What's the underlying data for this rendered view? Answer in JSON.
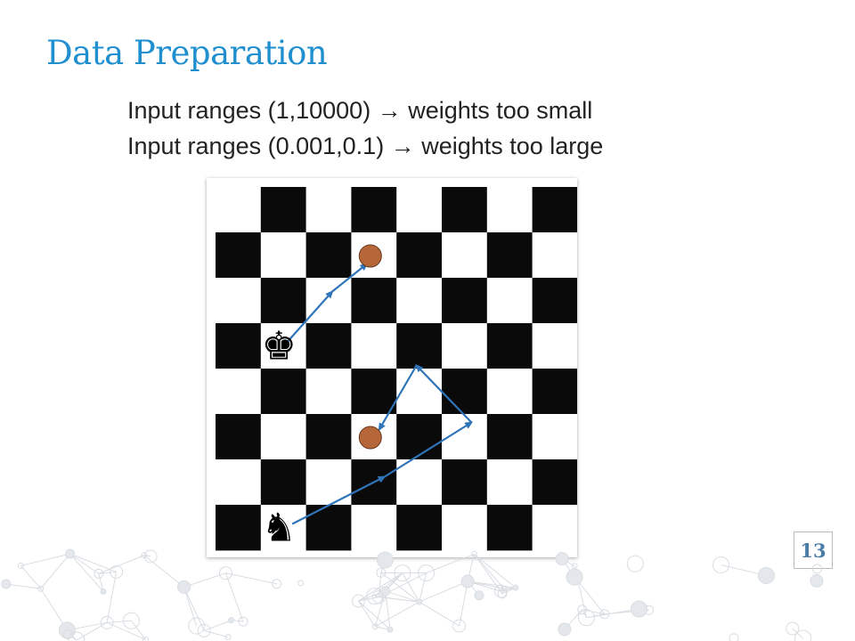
{
  "slide": {
    "title": "Data Preparation",
    "lines": [
      "Input ranges (1,10000) → weights too small",
      "Input ranges (0.001,0.1) → weights too large"
    ],
    "page_number": "13"
  },
  "board": {
    "size": 8,
    "dark_color": "#0a0a0a",
    "light_color": "#ffffff",
    "arrow_color": "#2f74b8",
    "target_color": "#b5673a",
    "pieces": [
      {
        "name": "king",
        "glyph": "♚",
        "col": 1,
        "row": 3
      },
      {
        "name": "knight",
        "glyph": "♞",
        "col": 1,
        "row": 7
      }
    ],
    "targets": [
      {
        "col": 3,
        "row": 1
      },
      {
        "col": 3,
        "row": 5
      }
    ]
  },
  "colors": {
    "title": "#1f8fd0",
    "page_number": "#4a7ca8"
  }
}
